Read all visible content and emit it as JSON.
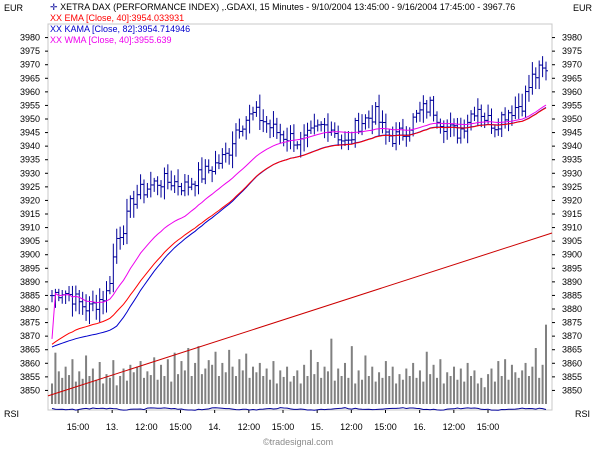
{
  "header": {
    "currency_left": "EUR",
    "currency_right": "EUR",
    "instrument_line": "XETRA DAX (PERFORMANCE INDEX) ,.GDAXI, 15 Minutes - 9/10/2004 13:45:00 - 9/16/2004 17:45:00 - 3967.76"
  },
  "legend": [
    {
      "label": "XX EMA [Close, 40]:3954.033931",
      "color": "#ff0000"
    },
    {
      "label": "XX KAMA [Close, 82]:3954.714946",
      "color": "#0000cc"
    },
    {
      "label": "XX WMA [Close, 40]:3955.639",
      "color": "#ee00ee"
    }
  ],
  "footer": {
    "rsi_label": "RSI",
    "rsi_label_right": "RSI",
    "watermark": "©tradesignal.com"
  },
  "colors": {
    "price_bars": "#000099",
    "ema": "#ff0000",
    "kama": "#0000cc",
    "wma": "#ee00ee",
    "volume": "#808080",
    "trendline": "#cc0000",
    "rsi": "#000099",
    "background": "#ffffff"
  },
  "chart_data": {
    "type": "ohlc",
    "ylim": [
      3845,
      3985
    ],
    "y_ticks": [
      3850,
      3855,
      3860,
      3865,
      3870,
      3875,
      3880,
      3885,
      3890,
      3895,
      3900,
      3905,
      3910,
      3915,
      3920,
      3925,
      3930,
      3935,
      3940,
      3945,
      3950,
      3955,
      3960,
      3965,
      3970,
      3975,
      3980
    ],
    "x_tick_labels": [
      "15:00",
      "13.",
      "12:00",
      "15:00",
      "14.",
      "12:00",
      "15:00",
      "15.",
      "12:00",
      "15:00",
      "16.",
      "12:00",
      "15:00"
    ],
    "bar_count": 146,
    "close_series": [
      [
        0,
        3885
      ],
      [
        4,
        3887
      ],
      [
        8,
        3885
      ],
      [
        12,
        3882
      ],
      [
        16,
        3880
      ],
      [
        20,
        3883
      ],
      [
        24,
        3886
      ],
      [
        28,
        3906
      ],
      [
        32,
        3912
      ],
      [
        34,
        3918
      ],
      [
        36,
        3922
      ],
      [
        40,
        3924
      ],
      [
        46,
        3927
      ],
      [
        52,
        3927
      ],
      [
        58,
        3925
      ],
      [
        62,
        3928
      ],
      [
        66,
        3930
      ],
      [
        72,
        3934
      ],
      [
        76,
        3937
      ],
      [
        80,
        3947
      ],
      [
        84,
        3950
      ],
      [
        88,
        3952
      ],
      [
        92,
        3949
      ],
      [
        96,
        3946
      ],
      [
        100,
        3944
      ],
      [
        104,
        3943
      ],
      [
        108,
        3941
      ],
      [
        112,
        3944
      ],
      [
        116,
        3947
      ],
      [
        120,
        3948
      ],
      [
        124,
        3944
      ],
      [
        128,
        3940
      ],
      [
        132,
        3948
      ],
      [
        136,
        3950
      ],
      [
        140,
        3952
      ],
      [
        144,
        3945
      ],
      [
        148,
        3943
      ],
      [
        152,
        3945
      ],
      [
        156,
        3949
      ],
      [
        160,
        3953
      ],
      [
        164,
        3955
      ],
      [
        168,
        3950
      ],
      [
        172,
        3946
      ],
      [
        176,
        3945
      ],
      [
        180,
        3950
      ],
      [
        184,
        3955
      ],
      [
        188,
        3950
      ],
      [
        192,
        3948
      ],
      [
        196,
        3952
      ],
      [
        200,
        3954
      ],
      [
        204,
        3956
      ],
      [
        208,
        3965
      ],
      [
        212,
        3968
      ],
      [
        214,
        3966
      ]
    ],
    "series": [
      {
        "name": "XX EMA [Close, 40]",
        "last": 3954.033931
      },
      {
        "name": "XX KAMA [Close, 82]",
        "last": 3954.714946
      },
      {
        "name": "XX WMA [Close, 40]",
        "last": 3955.639
      }
    ],
    "last_close": 3967.76,
    "trendline": {
      "start": 3848,
      "end": 3908
    },
    "volume": [
      22,
      55,
      35,
      28,
      40,
      31,
      48,
      24,
      35,
      27,
      52,
      30,
      38,
      26,
      45,
      22,
      32,
      28,
      47,
      20,
      30,
      38,
      25,
      42,
      34,
      40,
      46,
      28,
      35,
      31,
      50,
      26,
      42,
      30,
      48,
      24,
      55,
      32,
      46,
      36,
      60,
      30,
      44,
      62,
      32,
      38,
      47,
      42,
      56,
      30,
      44,
      34,
      58,
      40,
      30,
      48,
      36,
      54,
      28,
      40,
      34,
      44,
      30,
      38,
      26,
      46,
      22,
      36,
      29,
      40,
      24,
      30,
      36,
      22,
      42,
      30,
      58,
      32,
      45,
      28,
      40,
      35,
      70,
      25,
      38,
      30,
      44,
      28,
      62,
      22,
      36,
      26,
      52,
      30,
      40,
      24,
      34,
      28,
      46,
      30,
      40,
      22,
      32,
      26,
      38,
      30,
      44,
      28,
      36,
      24,
      56,
      32,
      42,
      28,
      48,
      22,
      34,
      30,
      40,
      26,
      38,
      24,
      44,
      30,
      36,
      22,
      28,
      18,
      32,
      38,
      24,
      46,
      30,
      48,
      26,
      42,
      34,
      28,
      36,
      44,
      30,
      40,
      60,
      28,
      42,
      85
    ]
  }
}
